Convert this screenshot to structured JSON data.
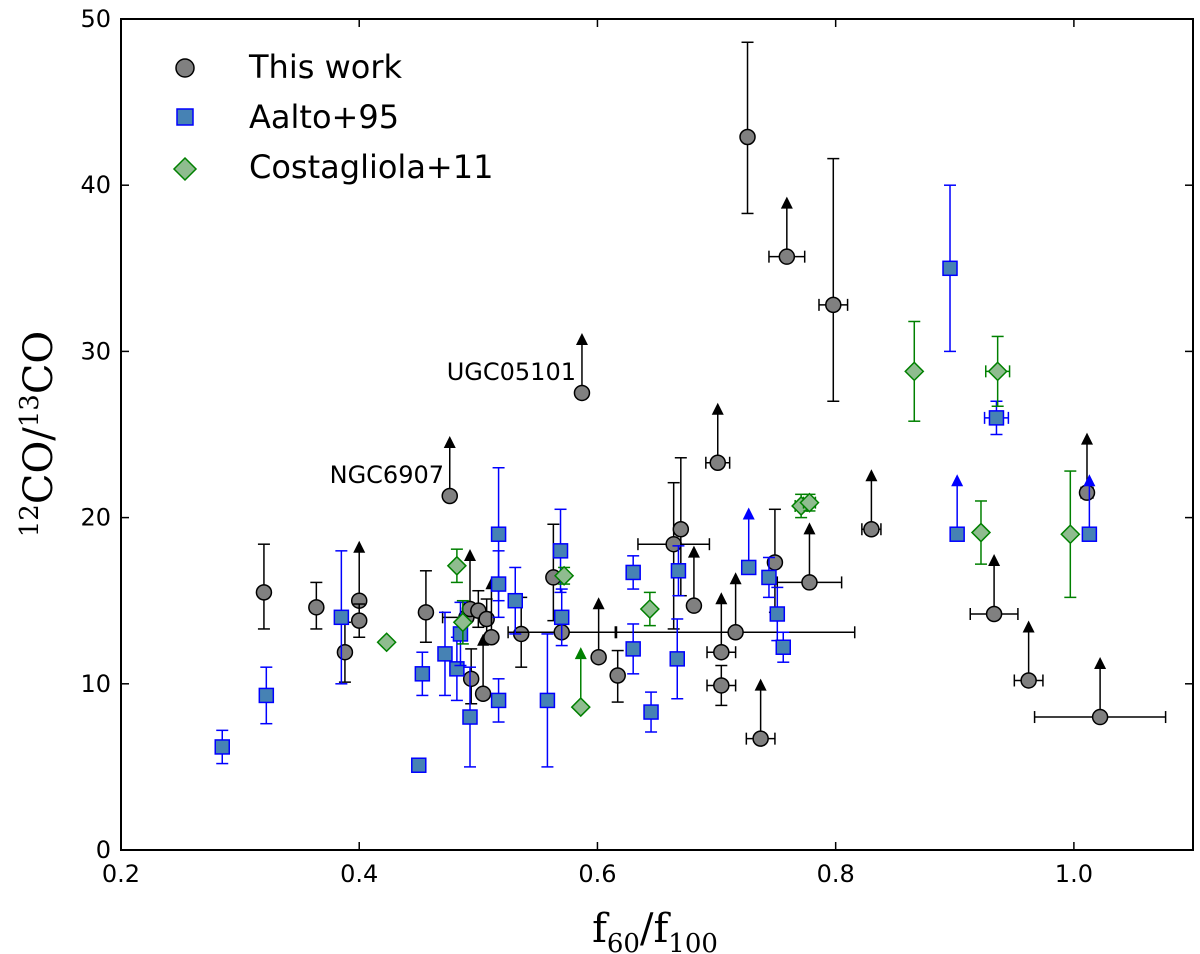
{
  "chart_data": {
    "type": "scatter",
    "title": "",
    "xlabel": {
      "base": "f",
      "sub1": "60",
      "slash": "/",
      "base2": "f",
      "sub2": "100"
    },
    "ylabel": {
      "sup1": "12",
      "mid": "CO",
      "slash": "/",
      "sup2": "13",
      "end": "CO"
    },
    "xlim": [
      0.2,
      1.1
    ],
    "ylim": [
      0,
      50
    ],
    "xticks": [
      0.2,
      0.4,
      0.6,
      0.8,
      1.0
    ],
    "xtick_labels": [
      "0.2",
      "0.4",
      "0.6",
      "0.8",
      "1.0"
    ],
    "yticks": [
      0,
      10,
      20,
      30,
      40,
      50
    ],
    "ytick_labels": [
      "0",
      "10",
      "20",
      "30",
      "40",
      "50"
    ],
    "grid": false,
    "legend_position": "top-left",
    "colors": {
      "this_work": "#808080",
      "this_work_edge": "#000000",
      "aalto": "#4682b4",
      "aalto_edge": "#0000ff",
      "costa": "#8fbc8f",
      "costa_edge": "#008000"
    },
    "annotations": [
      {
        "text": "UGC05101",
        "x": 0.587,
        "y": 27.5
      },
      {
        "text": "NGC6907",
        "x": 0.476,
        "y": 21.3
      }
    ],
    "series": [
      {
        "name": "This work",
        "marker": "circle",
        "points": [
          {
            "x": 0.32,
            "y": 15.5,
            "yerr": [
              2.2,
              2.9
            ]
          },
          {
            "x": 0.364,
            "y": 14.6,
            "yerr": [
              1.3,
              1.5
            ]
          },
          {
            "x": 0.388,
            "y": 11.9,
            "yerr": [
              1.8,
              1.8
            ]
          },
          {
            "x": 0.4,
            "y": 15.0,
            "lower": true
          },
          {
            "x": 0.4,
            "y": 13.8,
            "yerr": [
              1.0,
              1.0
            ]
          },
          {
            "x": 0.456,
            "y": 14.3,
            "yerr": [
              1.8,
              2.5
            ]
          },
          {
            "x": 0.476,
            "y": 21.3,
            "lower": true
          },
          {
            "x": 0.49,
            "y": 14.0,
            "xerr": [
              0.02,
              0.02
            ]
          },
          {
            "x": 0.493,
            "y": 14.5,
            "lower": true
          },
          {
            "x": 0.494,
            "y": 10.3,
            "yerr": [
              1.5,
              1.8
            ]
          },
          {
            "x": 0.5,
            "y": 14.4,
            "yerr": [
              1.0,
              1.2
            ]
          },
          {
            "x": 0.504,
            "y": 9.4,
            "lower": true
          },
          {
            "x": 0.507,
            "y": 13.9,
            "yerr": [
              1.2,
              1.2
            ]
          },
          {
            "x": 0.511,
            "y": 12.8,
            "lower": true
          },
          {
            "x": 0.536,
            "y": 13.0,
            "yerr": [
              2.0,
              2.2
            ]
          },
          {
            "x": 0.563,
            "y": 16.4,
            "yerr": [
              2.6,
              3.2
            ]
          },
          {
            "x": 0.57,
            "y": 13.1,
            "xerr": [
              0.045,
              0.045
            ]
          },
          {
            "x": 0.587,
            "y": 27.5,
            "lower": true
          },
          {
            "x": 0.601,
            "y": 11.6,
            "lower": true
          },
          {
            "x": 0.617,
            "y": 10.5,
            "yerr": [
              1.6,
              1.5
            ]
          },
          {
            "x": 0.664,
            "y": 18.4,
            "xerr": [
              0.03,
              0.03
            ],
            "yerr": [
              5.1,
              3.7
            ]
          },
          {
            "x": 0.67,
            "y": 19.3,
            "yerr": [
              4.0,
              4.3
            ]
          },
          {
            "x": 0.681,
            "y": 14.7,
            "lower": true
          },
          {
            "x": 0.701,
            "y": 23.3,
            "lower": true,
            "xerr": [
              0.01,
              0.01
            ]
          },
          {
            "x": 0.704,
            "y": 11.9,
            "lower": true,
            "xerr": [
              0.012,
              0.012
            ]
          },
          {
            "x": 0.704,
            "y": 9.9,
            "yerr": [
              1.2,
              1.2
            ],
            "xerr": [
              0.012,
              0.012
            ]
          },
          {
            "x": 0.716,
            "y": 13.1,
            "lower": true,
            "xerr": [
              0.1,
              0.1
            ]
          },
          {
            "x": 0.726,
            "y": 42.9,
            "yerr": [
              4.6,
              5.7
            ]
          },
          {
            "x": 0.737,
            "y": 6.7,
            "lower": true,
            "xerr": [
              0.012,
              0.012
            ]
          },
          {
            "x": 0.749,
            "y": 17.3,
            "yerr": [
              3.0,
              3.2
            ]
          },
          {
            "x": 0.759,
            "y": 35.7,
            "lower": true,
            "xerr": [
              0.015,
              0.015
            ]
          },
          {
            "x": 0.778,
            "y": 16.1,
            "lower": true,
            "xerr": [
              0.027,
              0.027
            ]
          },
          {
            "x": 0.798,
            "y": 32.8,
            "yerr": [
              5.8,
              8.8
            ],
            "xerr": [
              0.012,
              0.012
            ]
          },
          {
            "x": 0.83,
            "y": 19.3,
            "lower": true,
            "xerr": [
              0.008,
              0.008
            ]
          },
          {
            "x": 0.933,
            "y": 14.2,
            "lower": true,
            "xerr": [
              0.02,
              0.02
            ]
          },
          {
            "x": 0.962,
            "y": 10.2,
            "lower": true,
            "xerr": [
              0.012,
              0.012
            ]
          },
          {
            "x": 1.011,
            "y": 21.5,
            "lower": true,
            "xerr": [
              0.005,
              0.005
            ]
          },
          {
            "x": 1.022,
            "y": 8.0,
            "lower": true,
            "xerr": [
              0.055,
              0.055
            ]
          }
        ]
      },
      {
        "name": "Aalto+95",
        "marker": "square",
        "points": [
          {
            "x": 0.285,
            "y": 6.2,
            "yerr": [
              1.0,
              1.0
            ]
          },
          {
            "x": 0.322,
            "y": 9.3,
            "yerr": [
              1.7,
              1.7
            ]
          },
          {
            "x": 0.385,
            "y": 14.0,
            "yerr": [
              4.0,
              4.0
            ]
          },
          {
            "x": 0.45,
            "y": 5.1
          },
          {
            "x": 0.453,
            "y": 10.6,
            "yerr": [
              1.3,
              1.3
            ]
          },
          {
            "x": 0.472,
            "y": 11.8,
            "yerr": [
              2.5,
              2.5
            ]
          },
          {
            "x": 0.482,
            "y": 10.9,
            "yerr": [
              1.9,
              1.9
            ]
          },
          {
            "x": 0.485,
            "y": 13.0,
            "yerr": [
              1.9,
              1.9
            ]
          },
          {
            "x": 0.493,
            "y": 8.0,
            "yerr": [
              3.0,
              3.0
            ]
          },
          {
            "x": 0.517,
            "y": 19.0,
            "yerr": [
              4.0,
              4.0
            ]
          },
          {
            "x": 0.517,
            "y": 16.0,
            "yerr": [
              2.0,
              2.0
            ]
          },
          {
            "x": 0.517,
            "y": 9.0,
            "yerr": [
              1.3,
              1.3
            ]
          },
          {
            "x": 0.531,
            "y": 15.0,
            "yerr": [
              2.0,
              2.0
            ]
          },
          {
            "x": 0.558,
            "y": 9.0,
            "yerr": [
              4.0,
              4.0
            ]
          },
          {
            "x": 0.569,
            "y": 18.0,
            "yerr": [
              2.5,
              2.5
            ]
          },
          {
            "x": 0.57,
            "y": 14.0,
            "yerr": [
              1.7,
              1.7
            ]
          },
          {
            "x": 0.63,
            "y": 16.7,
            "yerr": [
              1.0,
              1.0
            ]
          },
          {
            "x": 0.63,
            "y": 12.1,
            "yerr": [
              1.5,
              1.5
            ]
          },
          {
            "x": 0.645,
            "y": 8.3,
            "yerr": [
              1.2,
              1.2
            ]
          },
          {
            "x": 0.667,
            "y": 11.5,
            "yerr": [
              2.4,
              2.4
            ]
          },
          {
            "x": 0.668,
            "y": 16.8,
            "yerr": [
              1.5,
              1.5
            ]
          },
          {
            "x": 0.727,
            "y": 17.0,
            "lower": true
          },
          {
            "x": 0.744,
            "y": 16.4,
            "yerr": [
              1.2,
              1.2
            ]
          },
          {
            "x": 0.751,
            "y": 14.2,
            "yerr": [
              1.6,
              1.6
            ]
          },
          {
            "x": 0.756,
            "y": 12.2,
            "yerr": [
              0.9,
              0.9
            ]
          },
          {
            "x": 0.896,
            "y": 35.0,
            "yerr": [
              5.0,
              5.0
            ]
          },
          {
            "x": 0.902,
            "y": 19.0,
            "lower": true
          },
          {
            "x": 0.935,
            "y": 26.0,
            "xerr": [
              0.01,
              0.01
            ],
            "yerr": [
              1.0,
              1.0
            ]
          },
          {
            "x": 1.013,
            "y": 19.0,
            "lower": true
          }
        ]
      },
      {
        "name": "Costagliola+11",
        "marker": "diamond",
        "points": [
          {
            "x": 0.423,
            "y": 12.5
          },
          {
            "x": 0.482,
            "y": 17.1,
            "yerr": [
              1.0,
              1.0
            ]
          },
          {
            "x": 0.487,
            "y": 13.7,
            "yerr": [
              1.3,
              1.3
            ]
          },
          {
            "x": 0.572,
            "y": 16.5,
            "yerr": [
              0.5,
              0.5
            ]
          },
          {
            "x": 0.586,
            "y": 8.6,
            "lower": true
          },
          {
            "x": 0.644,
            "y": 14.5,
            "yerr": [
              1.0,
              1.0
            ]
          },
          {
            "x": 0.771,
            "y": 20.7,
            "xerr": [
              0.005,
              0.005
            ],
            "yerr": [
              0.7,
              0.7
            ]
          },
          {
            "x": 0.778,
            "y": 20.9,
            "xerr": [
              0.005,
              0.005
            ],
            "yerr": [
              0.5,
              0.5
            ]
          },
          {
            "x": 0.866,
            "y": 28.8,
            "yerr": [
              3.0,
              3.0
            ]
          },
          {
            "x": 0.922,
            "y": 19.1,
            "yerr": [
              1.9,
              1.9
            ]
          },
          {
            "x": 0.936,
            "y": 28.8,
            "xerr": [
              0.01,
              0.01
            ],
            "yerr": [
              2.1,
              2.1
            ]
          },
          {
            "x": 0.997,
            "y": 19.0,
            "yerr": [
              3.8,
              3.8
            ]
          }
        ]
      }
    ]
  }
}
